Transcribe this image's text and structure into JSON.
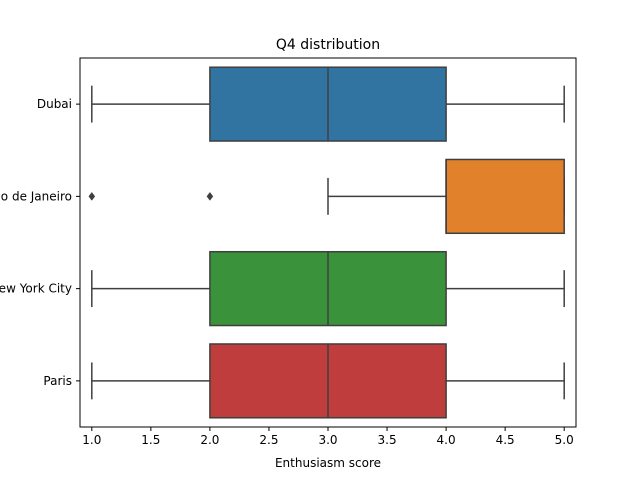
{
  "chart_data": {
    "type": "box",
    "title": "Q4 distribution",
    "xlabel": "Enthusiasm score",
    "ylabel": "",
    "xlim": [
      0.9,
      5.1
    ],
    "xticks": [
      "1.0",
      "1.5",
      "2.0",
      "2.5",
      "3.0",
      "3.5",
      "4.0",
      "4.5",
      "5.0"
    ],
    "orientation": "horizontal",
    "grid": false,
    "categories": [
      "Dubai",
      "Rio de Janeiro",
      "New York City",
      "Paris"
    ],
    "boxes": [
      {
        "category": "Dubai",
        "whisker_low": 1,
        "q1": 2,
        "median": 3,
        "q3": 4,
        "whisker_high": 5,
        "outliers": [],
        "color": "#3274a1"
      },
      {
        "category": "Rio de Janeiro",
        "whisker_low": 3,
        "q1": 4,
        "median": 4,
        "q3": 5,
        "whisker_high": 5,
        "outliers": [
          1,
          2
        ],
        "color": "#e1812c"
      },
      {
        "category": "New York City",
        "whisker_low": 1,
        "q1": 2,
        "median": 3,
        "q3": 4,
        "whisker_high": 5,
        "outliers": [],
        "color": "#3a923a"
      },
      {
        "category": "Paris",
        "whisker_low": 1,
        "q1": 2,
        "median": 3,
        "q3": 4,
        "whisker_high": 5,
        "outliers": [],
        "color": "#c03d3e"
      }
    ],
    "line_color": "#3f3f3f"
  }
}
